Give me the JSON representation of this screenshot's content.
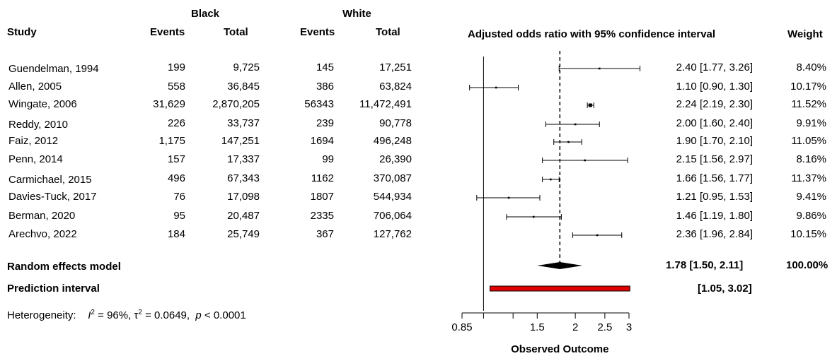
{
  "headers": {
    "group1": "Black",
    "group2": "White",
    "study": "Study",
    "events": "Events",
    "total": "Total",
    "plot_title": "Adjusted odds ratio with 95% confidence interval",
    "weight": "Weight"
  },
  "studies": [
    {
      "study": "Guendelman, 1994",
      "b_events": "199",
      "b_total": "9,725",
      "w_events": "145",
      "w_total": "17,251",
      "ci_text": "2.40 [1.77, 3.26]",
      "weight": "8.40%"
    },
    {
      "study": "Allen, 2005",
      "b_events": "558",
      "b_total": "36,845",
      "w_events": "386",
      "w_total": "63,824",
      "ci_text": "1.10 [0.90, 1.30]",
      "weight": "10.17%"
    },
    {
      "study": "Wingate, 2006",
      "b_events": "31,629",
      "b_total": "2,870,205",
      "w_events": "56343",
      "w_total": "11,472,491",
      "ci_text": "2.24 [2.19, 2.30]",
      "weight": "11.52%"
    },
    {
      "study": "Reddy, 2010",
      "b_events": "226",
      "b_total": "33,737",
      "w_events": "239",
      "w_total": "90,778",
      "ci_text": "2.00 [1.60, 2.40]",
      "weight": "9.91%"
    },
    {
      "study": "Faiz, 2012",
      "b_events": "1,175",
      "b_total": "147,251",
      "w_events": "1694",
      "w_total": "496,248",
      "ci_text": "1.90 [1.70, 2.10]",
      "weight": "11.05%"
    },
    {
      "study": "Penn, 2014",
      "b_events": "157",
      "b_total": "17,337",
      "w_events": "99",
      "w_total": "26,390",
      "ci_text": "2.15 [1.56, 2.97]",
      "weight": "8.16%"
    },
    {
      "study": "Carmichael, 2015",
      "b_events": "496",
      "b_total": "67,343",
      "w_events": "1162",
      "w_total": "370,087",
      "ci_text": "1.66 [1.56, 1.77]",
      "weight": "11.37%"
    },
    {
      "study": "Davies-Tuck, 2017",
      "b_events": "76",
      "b_total": "17,098",
      "w_events": "1807",
      "w_total": "544,934",
      "ci_text": "1.21 [0.95, 1.53]",
      "weight": "9.41%"
    },
    {
      "study": "Berman, 2020",
      "b_events": "95",
      "b_total": "20,487",
      "w_events": "2335",
      "w_total": "706,064",
      "ci_text": "1.46 [1.19, 1.80]",
      "weight": "9.86%"
    },
    {
      "study": "Arechvo, 2022",
      "b_events": "184",
      "b_total": "25,749",
      "w_events": "367",
      "w_total": "127,762",
      "ci_text": "2.36 [1.96, 2.84]",
      "weight": "10.15%"
    }
  ],
  "summary": {
    "re_label": "Random effects model",
    "re_ci_text": "1.78 [1.50, 2.11]",
    "re_weight": "100.00%",
    "pi_label": "Prediction interval",
    "pi_text": "[1.05, 3.02]",
    "het_label": "Heterogeneity:",
    "het_i2": "I",
    "het_i2_sup": "2",
    "het_i2_val": " = 96%, ",
    "het_tau": "τ",
    "het_tau_sup": "2",
    "het_tau_val": " = 0.0649, ",
    "het_p": "p",
    "het_p_val": " < 0.0001"
  },
  "chart_data": {
    "type": "forest",
    "xlabel": "Observed Outcome",
    "x_scale": "log",
    "xlim": [
      0.85,
      3.3
    ],
    "x_ticks": [
      0.85,
      1.5,
      2,
      2.5,
      3
    ],
    "x_tick_labels": [
      "0.85",
      "1.5",
      "2",
      "2.5",
      "3"
    ],
    "reference_line": 1,
    "pooled_line": 1.78,
    "studies": [
      {
        "label": "Guendelman, 1994",
        "estimate": 2.4,
        "lower": 1.77,
        "upper": 3.26
      },
      {
        "label": "Allen, 2005",
        "estimate": 1.1,
        "lower": 0.9,
        "upper": 1.3
      },
      {
        "label": "Wingate, 2006",
        "estimate": 2.24,
        "lower": 2.19,
        "upper": 2.3
      },
      {
        "label": "Reddy, 2010",
        "estimate": 2.0,
        "lower": 1.6,
        "upper": 2.4
      },
      {
        "label": "Faiz, 2012",
        "estimate": 1.9,
        "lower": 1.7,
        "upper": 2.1
      },
      {
        "label": "Penn, 2014",
        "estimate": 2.15,
        "lower": 1.56,
        "upper": 2.97
      },
      {
        "label": "Carmichael, 2015",
        "estimate": 1.66,
        "lower": 1.56,
        "upper": 1.77
      },
      {
        "label": "Davies-Tuck, 2017",
        "estimate": 1.21,
        "lower": 0.95,
        "upper": 1.53
      },
      {
        "label": "Berman, 2020",
        "estimate": 1.46,
        "lower": 1.19,
        "upper": 1.8
      },
      {
        "label": "Arechvo, 2022",
        "estimate": 2.36,
        "lower": 1.96,
        "upper": 2.84
      }
    ],
    "pooled": {
      "estimate": 1.78,
      "lower": 1.5,
      "upper": 2.11
    },
    "prediction_interval": {
      "lower": 1.05,
      "upper": 3.02
    },
    "colors": {
      "prediction_interval_fill": "#e00000",
      "line": "#000000"
    }
  }
}
